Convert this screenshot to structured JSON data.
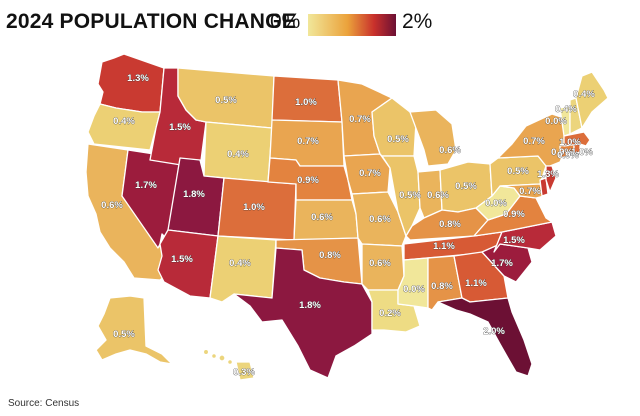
{
  "header": {
    "title": "2024 POPULATION CHANGE",
    "legend_min": "0%",
    "legend_max": "2%"
  },
  "source": "Source: Census",
  "colors": {
    "v00": "#f1e79a",
    "v02": "#eedc84",
    "v03": "#ecd57d",
    "v04": "#ecd074",
    "v05": "#ebc468",
    "v06": "#eab45c",
    "v07": "#e9a550",
    "v08": "#e59347",
    "v09": "#e3833f",
    "v10": "#dc6e3b",
    "v11": "#d75a35",
    "v13": "#c93a31",
    "v15": "#b82a39",
    "v17": "#9c1c3d",
    "v18": "#8c1840",
    "v20": "#6c1034"
  },
  "states": {
    "WA": "1.3%",
    "OR": "0.4%",
    "CA": "0.6%",
    "NV": "1.7%",
    "ID": "1.5%",
    "MT": "0.5%",
    "WY": "0.4%",
    "UT": "1.8%",
    "AZ": "1.5%",
    "CO": "1.0%",
    "NM": "0.4%",
    "ND": "1.0%",
    "SD": "0.7%",
    "NE": "0.9%",
    "KS": "0.6%",
    "OK": "0.8%",
    "TX": "1.8%",
    "MN": "0.7%",
    "IA": "0.7%",
    "MO": "0.6%",
    "AR": "0.6%",
    "LA": "0.2%",
    "WI": "0.5%",
    "IL": "0.5%",
    "MI": "0.6%",
    "IN": "0.6%",
    "OH": "0.5%",
    "KY": "0.8%",
    "TN": "1.1%",
    "MS": "0.0%",
    "AL": "0.8%",
    "GA": "1.1%",
    "FL": "2.0%",
    "SC": "1.7%",
    "NC": "1.5%",
    "VA": "0.9%",
    "WV": "0.0%",
    "PA": "0.5%",
    "NY": "0.7%",
    "MD": "0.7%",
    "DE": "1.3%",
    "NJ": "0.9%",
    "CT": "0.9%",
    "RI": "1.0%",
    "MA": "1.0%",
    "VT": "0.0%",
    "NH": "0.4%",
    "ME": "0.4%",
    "AK": "0.5%",
    "HI": "0.3%"
  }
}
